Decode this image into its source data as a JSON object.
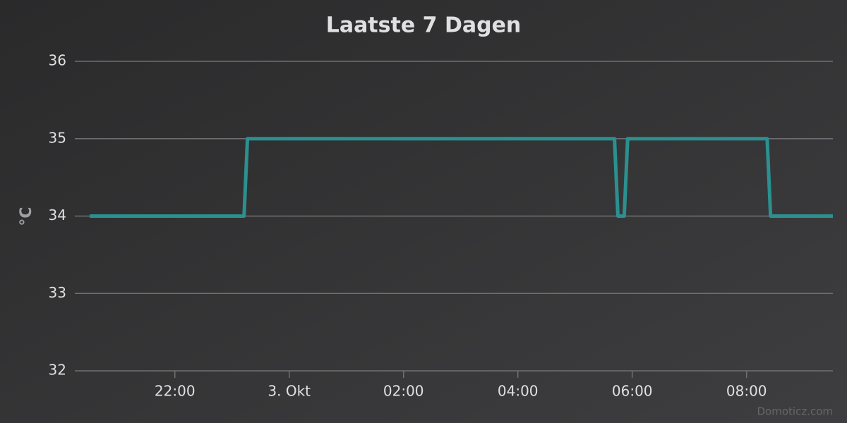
{
  "chart_data": {
    "type": "line",
    "title": "Laatste 7 Dagen",
    "y_label": "°C",
    "credits": "Domoticz.com",
    "x": [
      20.51,
      23.21,
      23.27,
      29.69,
      29.75,
      29.86,
      29.92,
      32.36,
      32.42,
      33.51
    ],
    "values": [
      34,
      34,
      35,
      35,
      34,
      34,
      35,
      35,
      34,
      34
    ],
    "color": "#2b908f",
    "xlim": [
      20.25,
      33.51
    ],
    "xticks": [
      {
        "value": 22,
        "label": "22:00"
      },
      {
        "value": 24,
        "label": "3. Okt"
      },
      {
        "value": 26,
        "label": "02:00"
      },
      {
        "value": 28,
        "label": "04:00"
      },
      {
        "value": 30,
        "label": "06:00"
      },
      {
        "value": 32,
        "label": "08:00"
      }
    ],
    "ylim": [
      32,
      36
    ],
    "yticks": [
      32,
      33,
      34,
      35,
      36
    ],
    "grid": true
  }
}
